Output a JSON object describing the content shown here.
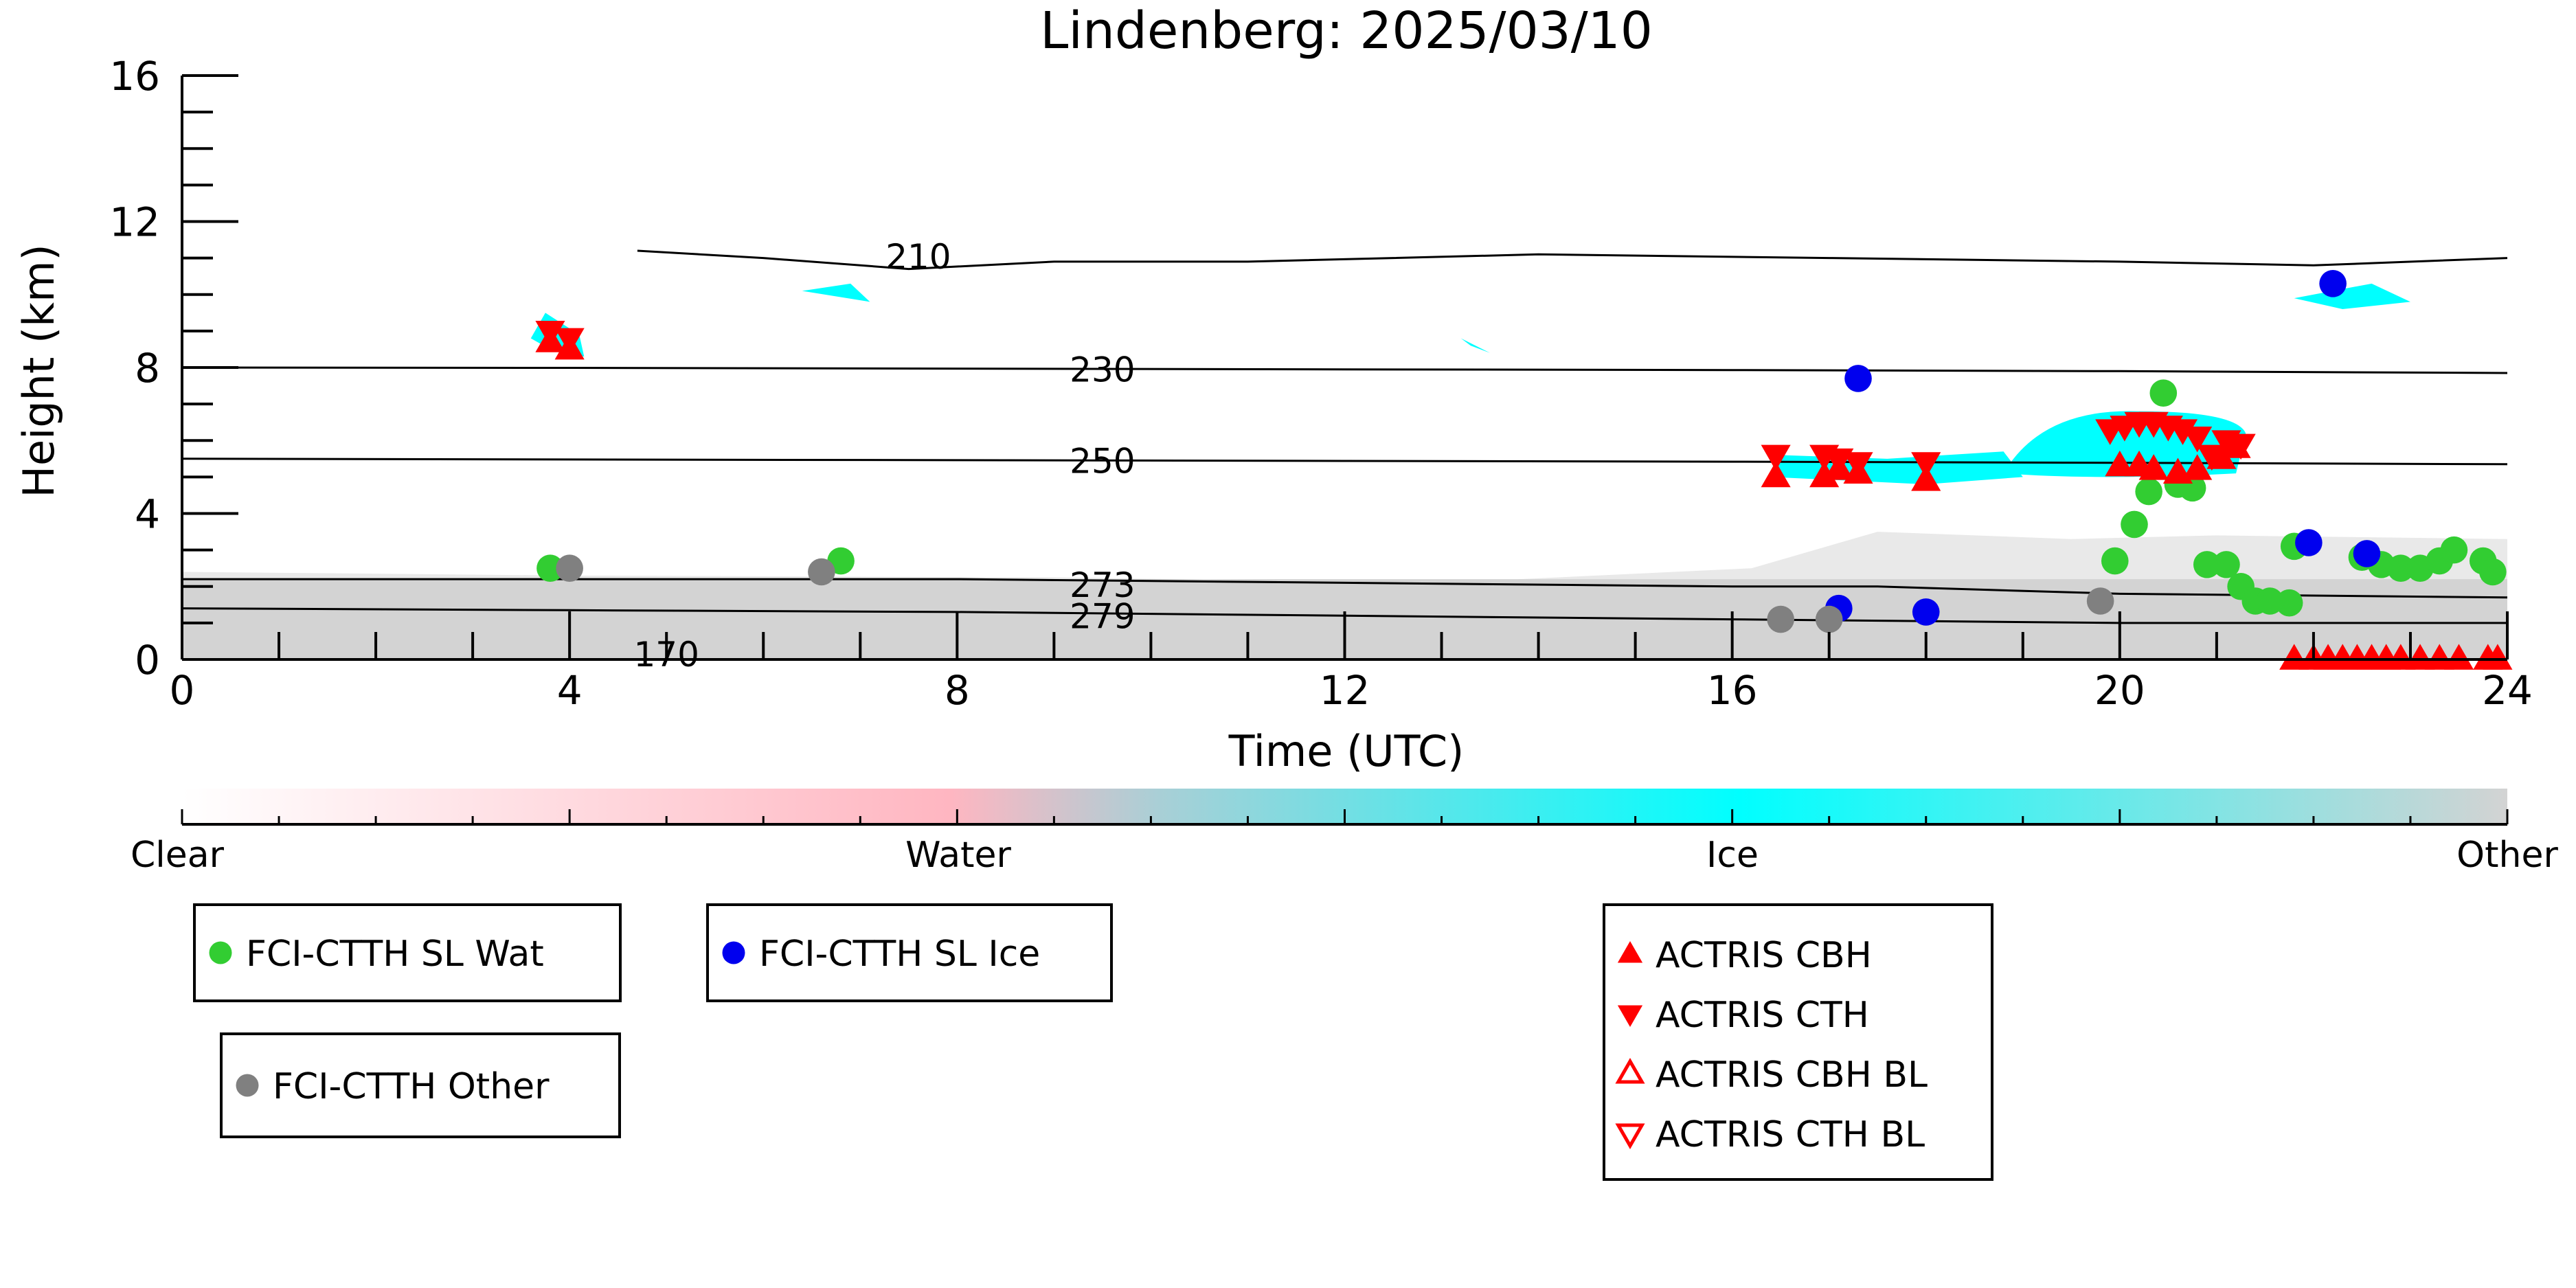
{
  "chart_data": {
    "type": "scatter",
    "title": "Lindenberg: 2025/03/10",
    "xlabel": "Time (UTC)",
    "ylabel": "Height (km)",
    "xlim": [
      0,
      24
    ],
    "ylim": [
      0,
      16
    ],
    "xticks": [
      "0",
      "4",
      "8",
      "12",
      "16",
      "20",
      "24"
    ],
    "yticks": [
      "0",
      "4",
      "8",
      "12",
      "16"
    ],
    "grid": false,
    "colorbar": {
      "labels": [
        "Clear",
        "Water",
        "Ice",
        "Other"
      ],
      "colors": [
        "#ffffff",
        "#ffb6c1",
        "#00ffff",
        "#d3d3d3"
      ]
    },
    "contours": [
      {
        "label": "210",
        "x": [
          4.7,
          6,
          7.5,
          9,
          11,
          14,
          17,
          20,
          22,
          24
        ],
        "y": [
          11.2,
          11.0,
          10.7,
          10.9,
          10.9,
          11.1,
          11.0,
          10.9,
          10.8,
          11.0
        ]
      },
      {
        "label": "230",
        "x": [
          0,
          4,
          8,
          12,
          16,
          20,
          24
        ],
        "y": [
          8.0,
          7.99,
          7.97,
          7.95,
          7.93,
          7.9,
          7.85
        ]
      },
      {
        "label": "250",
        "x": [
          0,
          4,
          8,
          12,
          16,
          20,
          24
        ],
        "y": [
          5.5,
          5.48,
          5.46,
          5.44,
          5.42,
          5.39,
          5.35
        ]
      },
      {
        "label": "273",
        "x": [
          0,
          4,
          8,
          12,
          16,
          17.5,
          20,
          24
        ],
        "y": [
          2.2,
          2.2,
          2.2,
          2.1,
          2.0,
          2.0,
          1.8,
          1.7
        ]
      },
      {
        "label": "279",
        "x": [
          0,
          4,
          8,
          12,
          16,
          20,
          24
        ],
        "y": [
          1.4,
          1.35,
          1.3,
          1.2,
          1.1,
          1.0,
          1.0
        ]
      }
    ],
    "contour_label_partial": "170",
    "series": [
      {
        "name": "FCI-CTTH SL Wat",
        "color": "#32cd32",
        "marker": "circle",
        "points": [
          [
            3.8,
            2.5
          ],
          [
            6.8,
            2.7
          ],
          [
            19.95,
            2.7
          ],
          [
            20.15,
            3.7
          ],
          [
            20.3,
            4.6
          ],
          [
            20.45,
            7.3
          ],
          [
            20.6,
            4.8
          ],
          [
            20.75,
            4.7
          ],
          [
            20.9,
            2.6
          ],
          [
            21.1,
            2.6
          ],
          [
            21.25,
            2.0
          ],
          [
            21.4,
            1.6
          ],
          [
            21.55,
            1.6
          ],
          [
            21.75,
            1.55
          ],
          [
            21.8,
            3.1
          ],
          [
            22.5,
            2.8
          ],
          [
            22.7,
            2.6
          ],
          [
            22.9,
            2.5
          ],
          [
            23.1,
            2.5
          ],
          [
            23.3,
            2.7
          ],
          [
            23.45,
            3.0
          ],
          [
            23.75,
            2.7
          ],
          [
            23.85,
            2.4
          ]
        ]
      },
      {
        "name": "FCI-CTTH SL Ice",
        "color": "#0000ee",
        "marker": "circle",
        "points": [
          [
            17.1,
            1.4
          ],
          [
            17.3,
            7.7
          ],
          [
            18.0,
            1.3
          ],
          [
            21.95,
            3.2
          ],
          [
            22.2,
            10.3
          ],
          [
            22.55,
            2.9
          ]
        ]
      },
      {
        "name": "FCI-CTTH Other",
        "color": "#808080",
        "marker": "circle",
        "points": [
          [
            4.0,
            2.5
          ],
          [
            6.6,
            2.4
          ],
          [
            16.5,
            1.1
          ],
          [
            17.0,
            1.1
          ],
          [
            19.8,
            1.6
          ]
        ]
      },
      {
        "name": "ACTRIS CBH",
        "color": "#ff0000",
        "marker": "triangle-up",
        "points": [
          [
            3.8,
            8.7
          ],
          [
            4.0,
            8.5
          ],
          [
            16.45,
            5.0
          ],
          [
            16.95,
            5.0
          ],
          [
            17.1,
            5.2
          ],
          [
            17.3,
            5.1
          ],
          [
            18.0,
            4.9
          ],
          [
            20.0,
            5.3
          ],
          [
            20.2,
            5.3
          ],
          [
            20.35,
            5.2
          ],
          [
            20.6,
            5.1
          ],
          [
            20.8,
            5.2
          ],
          [
            21.05,
            5.5
          ],
          [
            21.2,
            5.8
          ],
          [
            21.8,
            0.0
          ],
          [
            22.0,
            0.0
          ],
          [
            22.15,
            0.0
          ],
          [
            22.3,
            0.0
          ],
          [
            22.45,
            0.0
          ],
          [
            22.6,
            0.0
          ],
          [
            22.75,
            0.0
          ],
          [
            22.9,
            0.0
          ],
          [
            23.1,
            0.0
          ],
          [
            23.3,
            0.0
          ],
          [
            23.5,
            0.0
          ],
          [
            23.8,
            0.0
          ],
          [
            23.9,
            0.0
          ]
        ]
      },
      {
        "name": "ACTRIS CTH",
        "color": "#ff0000",
        "marker": "triangle-down",
        "points": [
          [
            3.8,
            9.0
          ],
          [
            4.0,
            8.8
          ],
          [
            16.45,
            5.6
          ],
          [
            16.95,
            5.6
          ],
          [
            17.1,
            5.5
          ],
          [
            17.3,
            5.4
          ],
          [
            18.0,
            5.4
          ],
          [
            19.9,
            6.3
          ],
          [
            20.05,
            6.4
          ],
          [
            20.2,
            6.5
          ],
          [
            20.35,
            6.5
          ],
          [
            20.5,
            6.4
          ],
          [
            20.65,
            6.3
          ],
          [
            20.8,
            6.1
          ],
          [
            20.95,
            5.6
          ],
          [
            21.1,
            6.0
          ],
          [
            21.25,
            5.9
          ]
        ]
      },
      {
        "name": "ACTRIS CBH BL",
        "color": "#ff0000",
        "marker": "triangle-up-open",
        "points": []
      },
      {
        "name": "ACTRIS CTH BL",
        "color": "#ff0000",
        "marker": "triangle-down-open",
        "points": []
      }
    ],
    "legend_groups": [
      [
        "FCI-CTTH SL Wat"
      ],
      [
        "FCI-CTTH SL Ice"
      ],
      [
        "FCI-CTTH Other"
      ],
      [
        "ACTRIS CBH",
        "ACTRIS CTH",
        "ACTRIS CBH BL",
        "ACTRIS CTH BL"
      ]
    ]
  }
}
